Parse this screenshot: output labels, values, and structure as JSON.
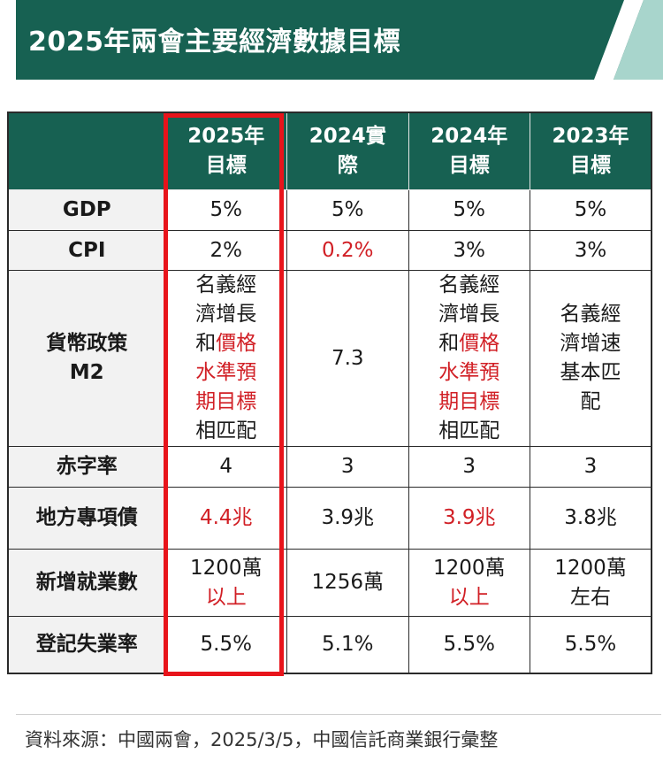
{
  "header": {
    "title": "2025年兩會主要經濟數據目標"
  },
  "colors": {
    "banner": "#176152",
    "accent_red": "#d11f25",
    "highlight_border": "#e8141b"
  },
  "table": {
    "columns": [
      {
        "line1": "2025年",
        "line2": "目標"
      },
      {
        "line1": "2024實",
        "line2": "際"
      },
      {
        "line1": "2024年",
        "line2": "目標"
      },
      {
        "line1": "2023年",
        "line2": "目標"
      }
    ],
    "rows": {
      "gdp": {
        "label": "GDP",
        "cells": [
          "5%",
          "5%",
          "5%",
          "5%"
        ]
      },
      "cpi": {
        "label": "CPI",
        "cells": [
          "2%",
          "0.2%",
          "3%",
          "3%"
        ]
      },
      "m2": {
        "label_line1": "貨幣政策",
        "label_line2": "M2",
        "c1": [
          "名義經",
          "濟增長",
          "和",
          "價格",
          "水準預",
          "期目標",
          "相匹配"
        ],
        "c2": "7.3",
        "c3": [
          "名義經",
          "濟增長",
          "和",
          "價格",
          "水準預",
          "期目標",
          "相匹配"
        ],
        "c4": [
          "名義經",
          "濟增速",
          "基本匹",
          "配"
        ]
      },
      "deficit": {
        "label": "赤字率",
        "cells": [
          "4",
          "3",
          "3",
          "3"
        ]
      },
      "special_bonds": {
        "label": "地方專項債",
        "cells": [
          "4.4兆",
          "3.9兆",
          "3.9兆",
          "3.8兆"
        ]
      },
      "employment": {
        "label": "新增就業數",
        "c1": [
          "1200萬",
          "以上"
        ],
        "c2": "1256萬",
        "c3": [
          "1200萬",
          "以上"
        ],
        "c4": [
          "1200萬",
          "左右"
        ]
      },
      "unemployment": {
        "label": "登記失業率",
        "cells": [
          "5.5%",
          "5.1%",
          "5.5%",
          "5.5%"
        ]
      }
    }
  },
  "footer": {
    "source": "資料來源：中國兩會，2025/3/5，中國信託商業銀行彙整"
  }
}
